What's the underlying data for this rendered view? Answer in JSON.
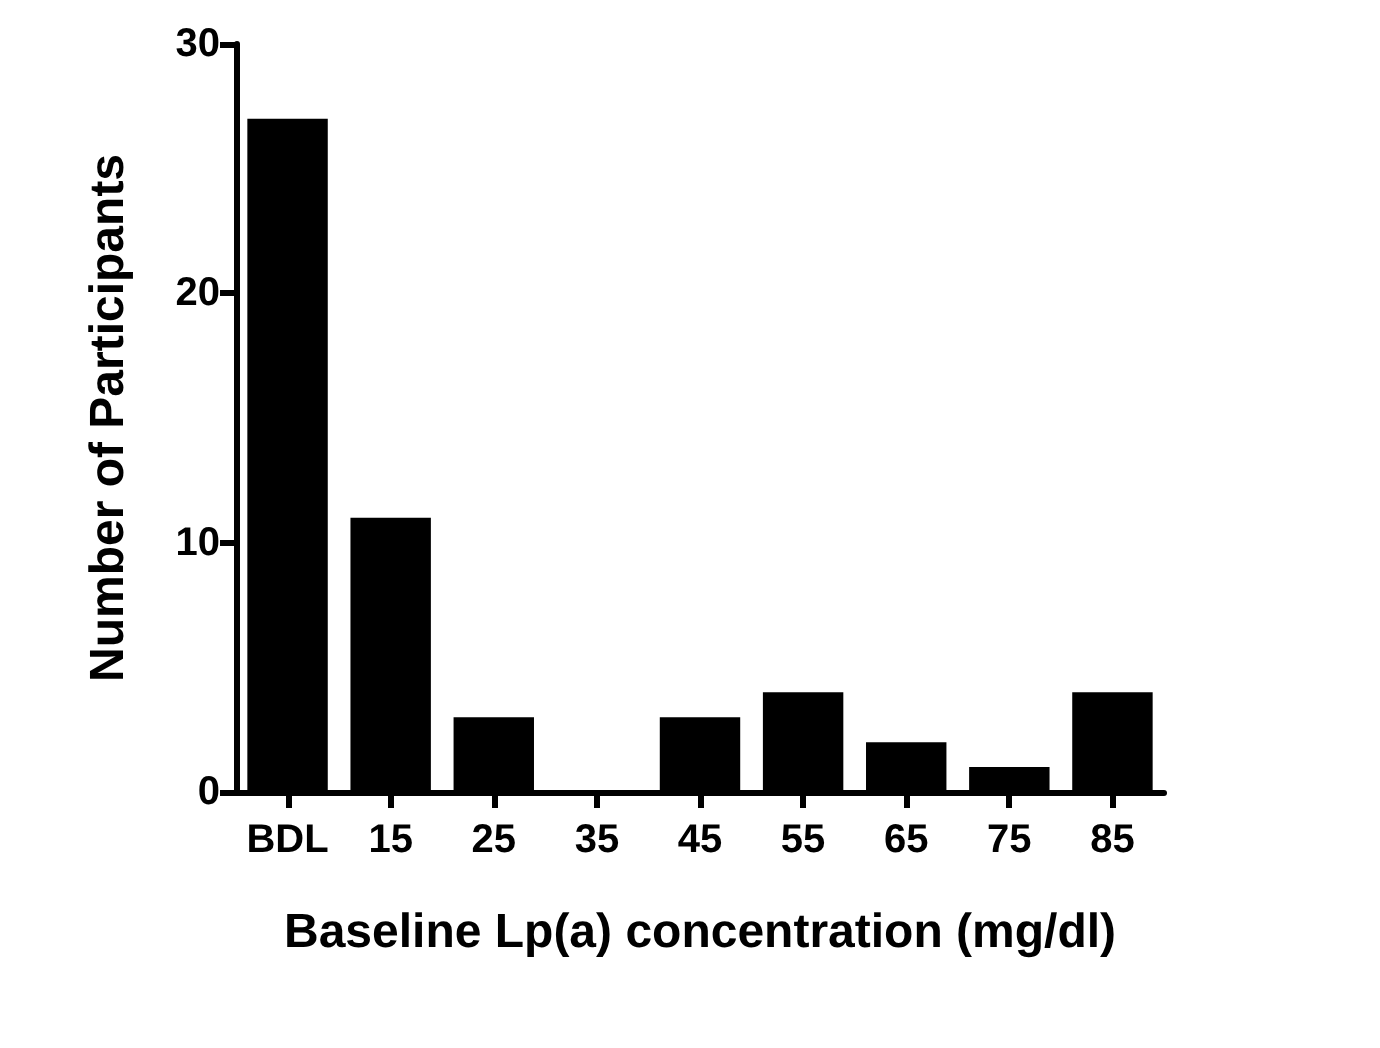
{
  "chart_data": {
    "type": "bar",
    "xlabel": "Baseline Lp(a) concentration (mg/dl)",
    "ylabel": "Number of Participants",
    "categories": [
      "BDL",
      "15",
      "25",
      "35",
      "45",
      "55",
      "65",
      "75",
      "85"
    ],
    "values": [
      27,
      11,
      3,
      0,
      3,
      4,
      2,
      1,
      4
    ],
    "color": "#000000",
    "ylim": [
      0,
      30
    ],
    "yticks": [
      0,
      10,
      20,
      30
    ],
    "grid": false
  }
}
